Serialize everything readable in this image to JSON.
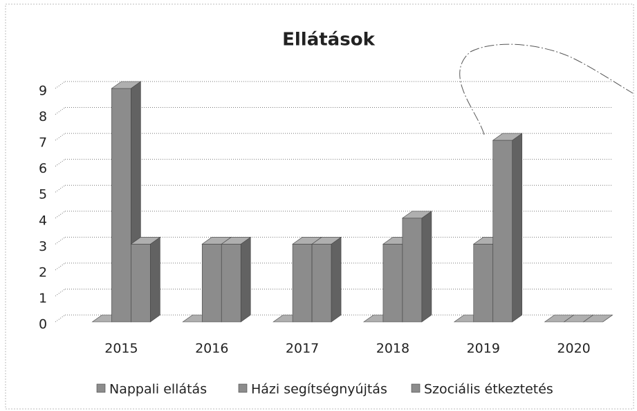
{
  "chart_data": {
    "type": "bar3d",
    "title": "Ellátások",
    "categories": [
      "2015",
      "2016",
      "2017",
      "2018",
      "2019",
      "2020"
    ],
    "series": [
      {
        "name": "Nappali ellátás",
        "color": "#8c8c8c",
        "values": [
          0,
          0,
          0,
          0,
          0,
          0
        ]
      },
      {
        "name": "Házi segítségnyújtás",
        "color": "#8c8c8c",
        "values": [
          9,
          3,
          3,
          3,
          3,
          0
        ]
      },
      {
        "name": "Szociális étkeztetés",
        "color": "#8c8c8c",
        "values": [
          3,
          3,
          3,
          4,
          7,
          0
        ]
      }
    ],
    "ylim": [
      0,
      9
    ],
    "yticks": [
      0,
      1,
      2,
      3,
      4,
      5,
      6,
      7,
      8,
      9
    ],
    "grid": true,
    "legend": "bottom"
  }
}
